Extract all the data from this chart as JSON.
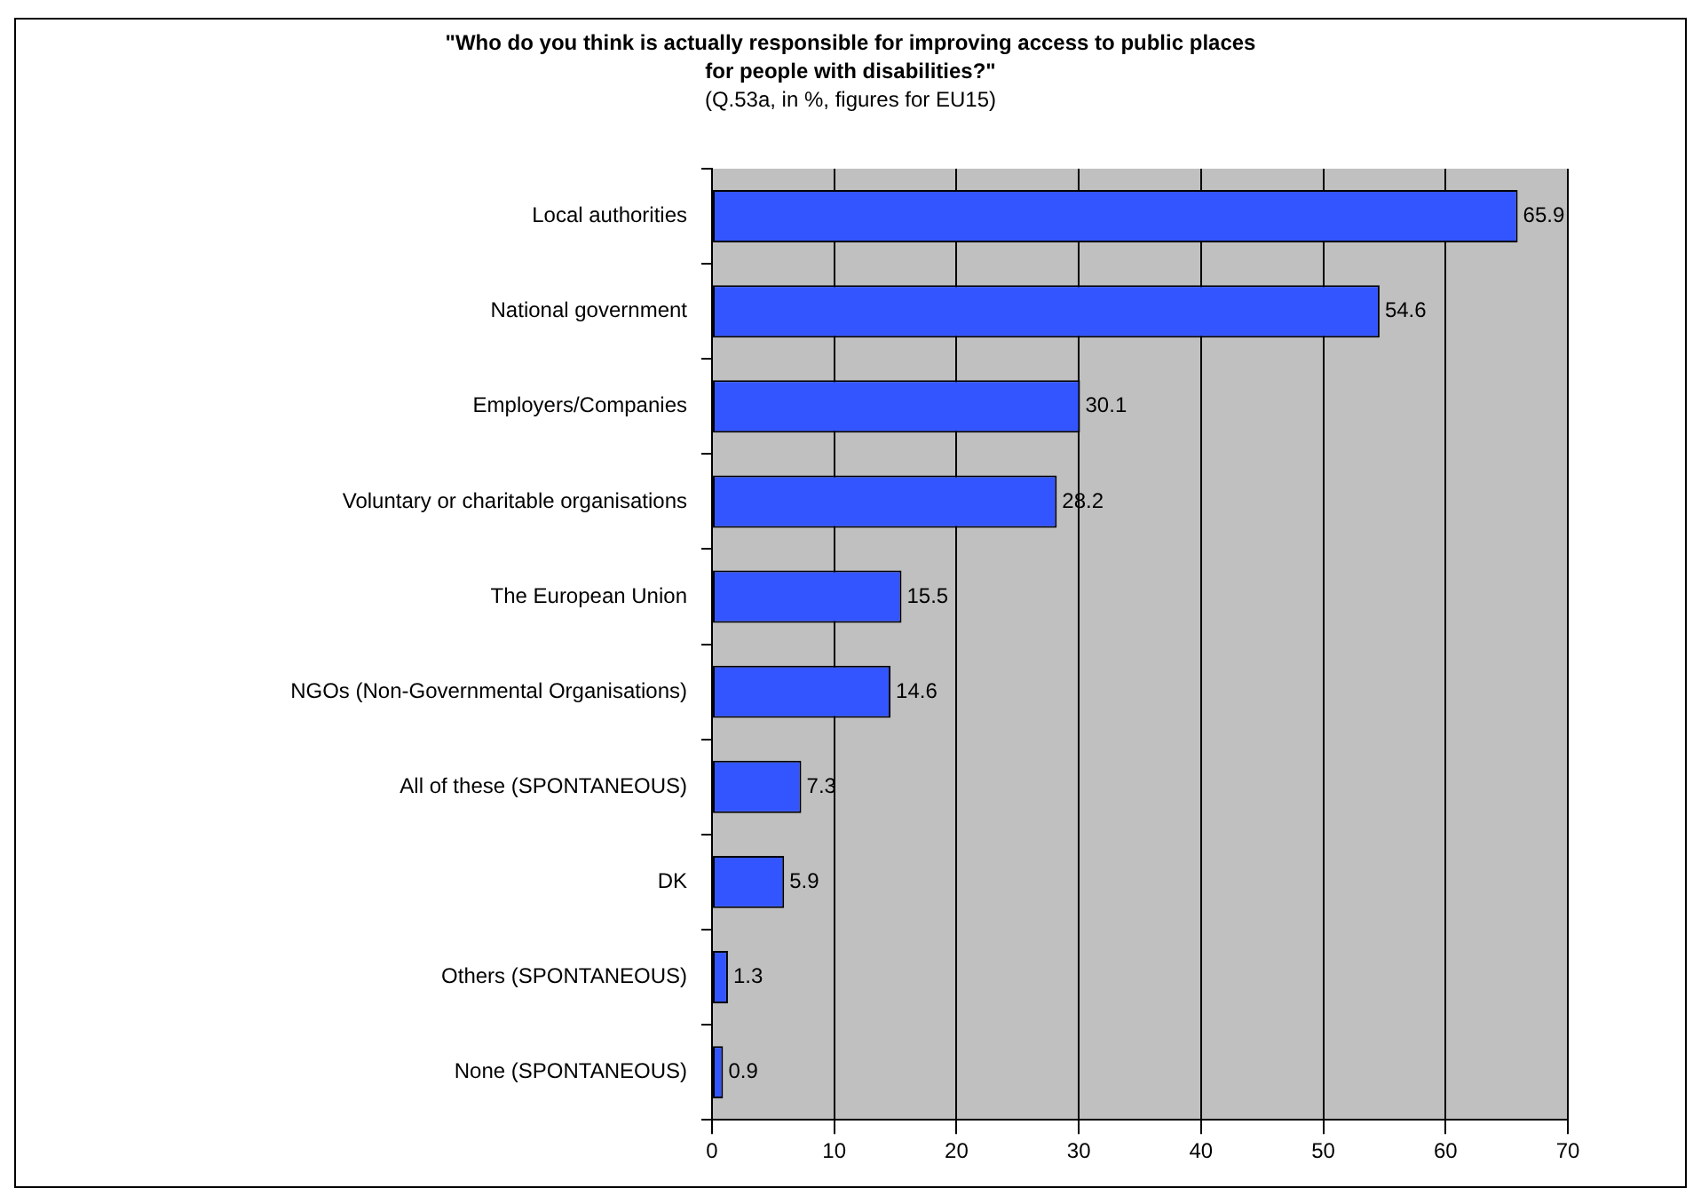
{
  "chart_data": {
    "type": "bar",
    "orientation": "horizontal",
    "title": "\"Who do you think is actually responsible for improving access to public places for people with disabilities?\"",
    "subtitle": "(Q.53a, in %, figures for EU15)",
    "categories": [
      "Local authorities",
      "National government",
      "Employers/Companies",
      "Voluntary or charitable organisations",
      "The European Union",
      "NGOs (Non-Governmental Organisations)",
      "All of these (SPONTANEOUS)",
      "DK",
      "Others (SPONTANEOUS)",
      "None (SPONTANEOUS)"
    ],
    "values": [
      65.9,
      54.6,
      30.1,
      28.2,
      15.5,
      14.6,
      7.3,
      5.9,
      1.3,
      0.9
    ],
    "color": "#3355ff",
    "xlim": [
      0,
      70
    ],
    "xticks": [
      0,
      10,
      20,
      30,
      40,
      50,
      60,
      70
    ],
    "grid": "x",
    "data_labels": true,
    "legend": false
  }
}
